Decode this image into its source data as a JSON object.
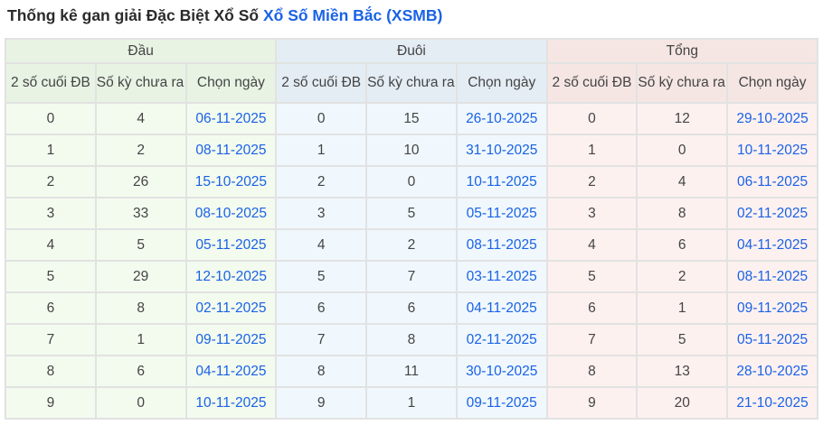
{
  "title": {
    "prefix": "Thống kê gan giải Đặc Biệt Xổ Số ",
    "link": "Xổ Số Miền Bắc (XSMB)"
  },
  "groups": [
    {
      "label": "Đầu"
    },
    {
      "label": "Đuôi"
    },
    {
      "label": "Tổng"
    }
  ],
  "columns": {
    "num": "2 số cuối ĐB",
    "count": "Số kỳ chưa ra",
    "date": "Chọn ngày"
  },
  "colors": {
    "link": "#1a62e6",
    "green": "#f3fbef",
    "blue": "#f0f8fd",
    "red": "#fdf1f0"
  },
  "rows": [
    {
      "dau": [
        "0",
        "4",
        "06-11-2025"
      ],
      "duoi": [
        "0",
        "15",
        "26-10-2025"
      ],
      "tong": [
        "0",
        "12",
        "29-10-2025"
      ]
    },
    {
      "dau": [
        "1",
        "2",
        "08-11-2025"
      ],
      "duoi": [
        "1",
        "10",
        "31-10-2025"
      ],
      "tong": [
        "1",
        "0",
        "10-11-2025"
      ]
    },
    {
      "dau": [
        "2",
        "26",
        "15-10-2025"
      ],
      "duoi": [
        "2",
        "0",
        "10-11-2025"
      ],
      "tong": [
        "2",
        "4",
        "06-11-2025"
      ]
    },
    {
      "dau": [
        "3",
        "33",
        "08-10-2025"
      ],
      "duoi": [
        "3",
        "5",
        "05-11-2025"
      ],
      "tong": [
        "3",
        "8",
        "02-11-2025"
      ]
    },
    {
      "dau": [
        "4",
        "5",
        "05-11-2025"
      ],
      "duoi": [
        "4",
        "2",
        "08-11-2025"
      ],
      "tong": [
        "4",
        "6",
        "04-11-2025"
      ]
    },
    {
      "dau": [
        "5",
        "29",
        "12-10-2025"
      ],
      "duoi": [
        "5",
        "7",
        "03-11-2025"
      ],
      "tong": [
        "5",
        "2",
        "08-11-2025"
      ]
    },
    {
      "dau": [
        "6",
        "8",
        "02-11-2025"
      ],
      "duoi": [
        "6",
        "6",
        "04-11-2025"
      ],
      "tong": [
        "6",
        "1",
        "09-11-2025"
      ]
    },
    {
      "dau": [
        "7",
        "1",
        "09-11-2025"
      ],
      "duoi": [
        "7",
        "8",
        "02-11-2025"
      ],
      "tong": [
        "7",
        "5",
        "05-11-2025"
      ]
    },
    {
      "dau": [
        "8",
        "6",
        "04-11-2025"
      ],
      "duoi": [
        "8",
        "11",
        "30-10-2025"
      ],
      "tong": [
        "8",
        "13",
        "28-10-2025"
      ]
    },
    {
      "dau": [
        "9",
        "0",
        "10-11-2025"
      ],
      "duoi": [
        "9",
        "1",
        "09-11-2025"
      ],
      "tong": [
        "9",
        "20",
        "21-10-2025"
      ]
    }
  ]
}
